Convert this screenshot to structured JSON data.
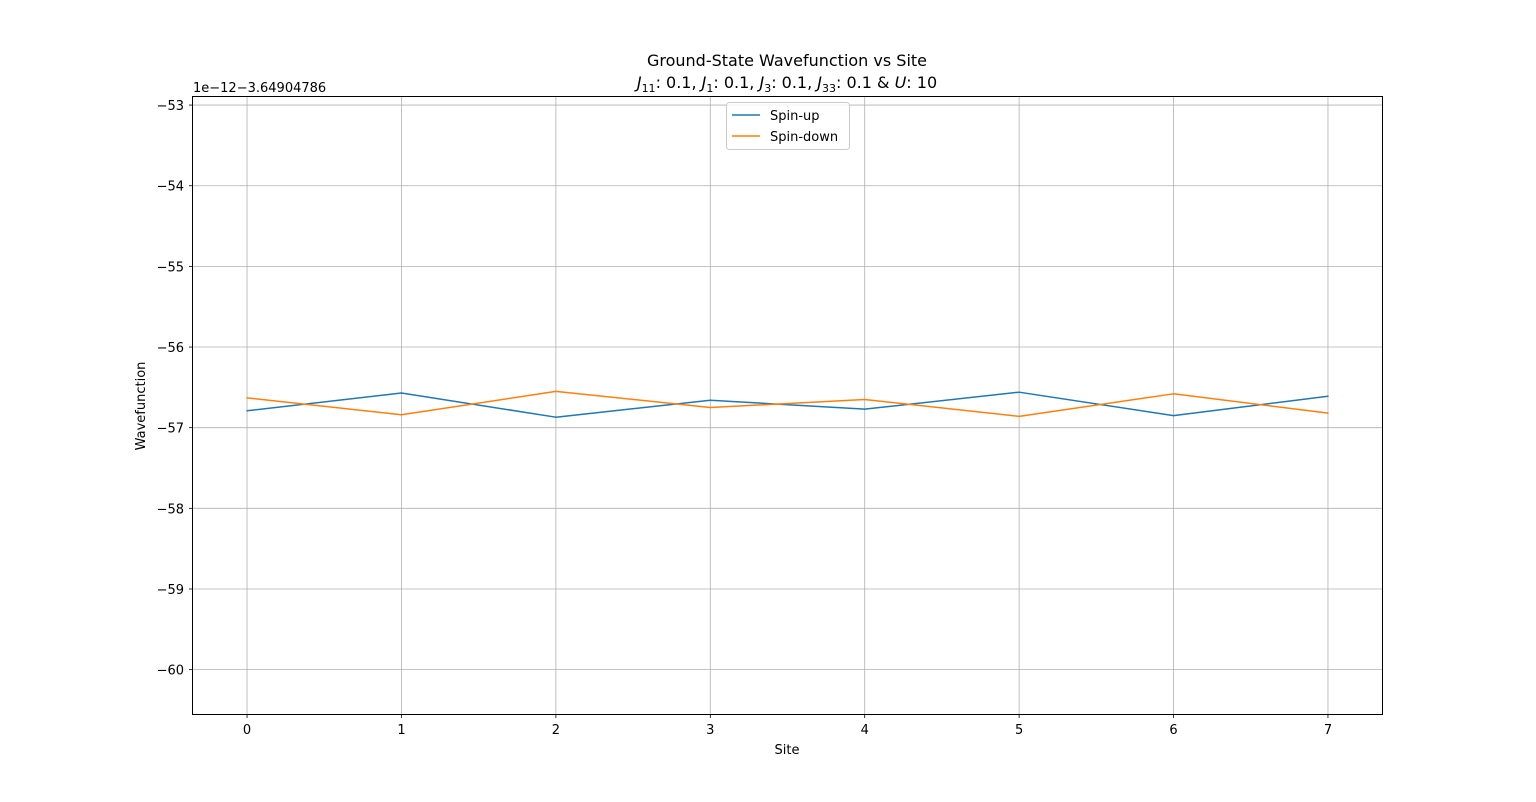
{
  "chart_data": {
    "type": "line",
    "title": "Ground-State Wavefunction vs Site",
    "subtitle_parts": {
      "j11_sym": "J",
      "j11_sub": "11",
      "j11_val": ": 0.1, ",
      "j1_sym": "J",
      "j1_sub": "1",
      "j1_val": ": 0.1, ",
      "j3_sym": "J",
      "j3_sub": "3",
      "j3_val": ": 0.1, ",
      "j33_sym": "J",
      "j33_sub": "33",
      "j33_val": ": 0.1 & ",
      "u_sym": "U",
      "u_val": ": 10"
    },
    "xlabel": "Site",
    "ylabel": "Wavefunction",
    "y_offset_label": "1e−12−3.64904786",
    "x": [
      0,
      1,
      2,
      3,
      4,
      5,
      6,
      7
    ],
    "xlim": [
      -0.35,
      7.35
    ],
    "ylim": [
      -60.55,
      -52.9
    ],
    "xticks": [
      0,
      1,
      2,
      3,
      4,
      5,
      6,
      7
    ],
    "yticks": [
      -60,
      -59,
      -58,
      -57,
      -56,
      -55,
      -54,
      -53
    ],
    "grid": true,
    "legend_position": "upper center",
    "series": [
      {
        "name": "Spin-up",
        "color": "#1f77b4",
        "values": [
          -56.79,
          -56.57,
          -56.87,
          -56.66,
          -56.77,
          -56.56,
          -56.85,
          -56.61
        ]
      },
      {
        "name": "Spin-down",
        "color": "#ff7f0e",
        "values": [
          -56.63,
          -56.84,
          -56.55,
          -56.75,
          -56.65,
          -56.86,
          -56.58,
          -56.82
        ]
      }
    ]
  }
}
